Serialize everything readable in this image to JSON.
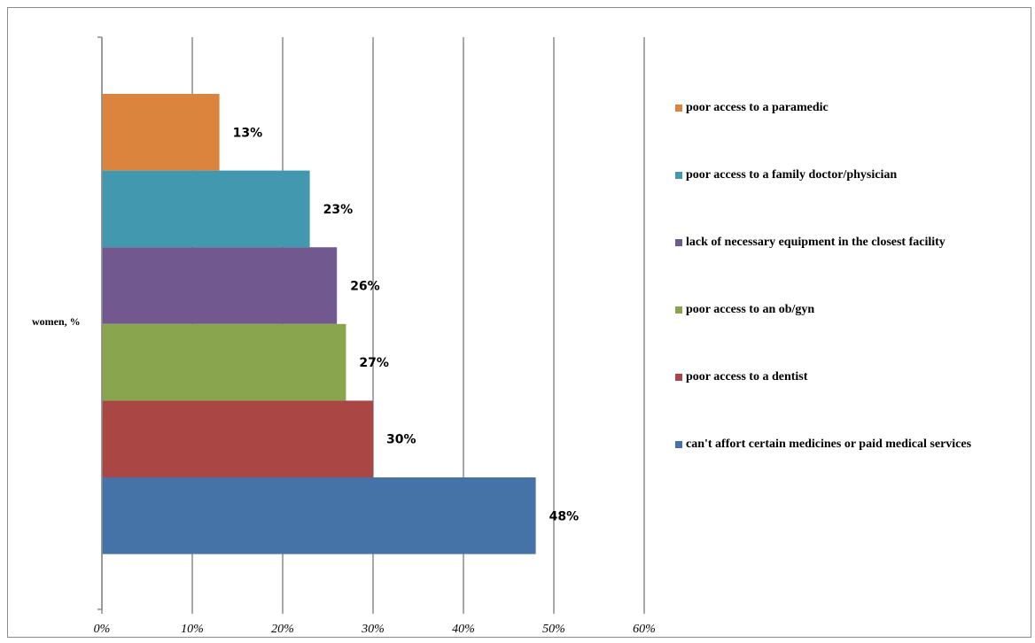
{
  "chart_data": {
    "type": "bar",
    "orientation": "horizontal",
    "category_axis_label": "women, %",
    "series": [
      {
        "name": "poor access to a paramedic",
        "value": 13,
        "label": "13%",
        "color": "#DB843D"
      },
      {
        "name": "poor access to a family doctor/physician",
        "value": 23,
        "label": "23%",
        "color": "#4198AF"
      },
      {
        "name": "lack of necessary equipment in the closest facility",
        "value": 26,
        "label": "26%",
        "color": "#71588F"
      },
      {
        "name": "poor access to an ob/gyn",
        "value": 27,
        "label": "27%",
        "color": "#89A54E"
      },
      {
        "name": "poor access to a dentist",
        "value": 30,
        "label": "30%",
        "color": "#AA4643"
      },
      {
        "name": "can't affort certain medicines or paid medical services",
        "value": 48,
        "label": "48%",
        "color": "#4572A7"
      }
    ],
    "x_axis": {
      "ticks": [
        "0%",
        "10%",
        "20%",
        "30%",
        "40%",
        "50%",
        "60%"
      ],
      "xlim": [
        0,
        60
      ],
      "unit": "%"
    },
    "grid": "vertical",
    "legend_position": "right"
  }
}
